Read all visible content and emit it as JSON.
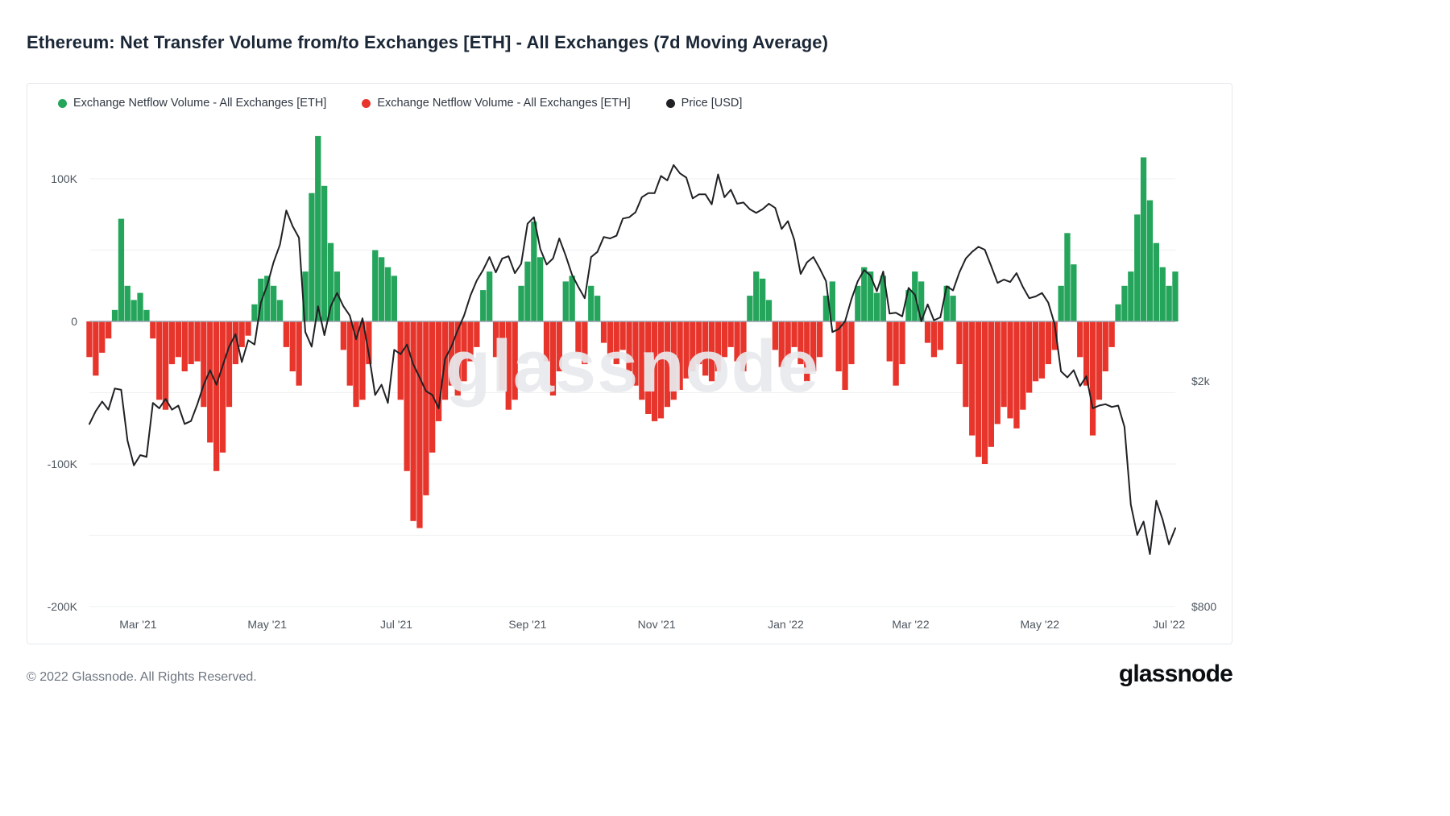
{
  "page": {
    "title": "Ethereum: Net Transfer Volume from/to Exchanges [ETH] - All Exchanges (7d Moving Average)",
    "footer_copyright": "© 2022 Glassnode. All Rights Reserved.",
    "brand_logo": "glassnode",
    "watermark": "glassnode"
  },
  "colors": {
    "positive_green": "#25a55b",
    "negative_red": "#e7352c",
    "price_black": "#202124",
    "zero_line": "#97a0ab",
    "gridline": "#eef0f2"
  },
  "legend": [
    {
      "label": "Exchange Netflow Volume - All Exchanges [ETH]",
      "color": "#25a55b"
    },
    {
      "label": "Exchange Netflow Volume - All Exchanges [ETH]",
      "color": "#e7352c"
    },
    {
      "label": "Price [USD]",
      "color": "#202124"
    }
  ],
  "chart_data": {
    "type": "bar",
    "title": "Ethereum: Net Transfer Volume from/to Exchanges [ETH] - All Exchanges (7d Moving Average)",
    "start_date": "2021-02-06",
    "step_days": 3,
    "series": [
      {
        "name": "Exchange Netflow Volume - All Exchanges [ETH]",
        "type": "bar",
        "axis": "left",
        "unit": "K ETH",
        "positive_color": "#25a55b",
        "negative_color": "#e7352c",
        "values": [
          -25,
          -38,
          -22,
          -12,
          8,
          72,
          25,
          15,
          20,
          8,
          -12,
          -55,
          -62,
          -30,
          -25,
          -35,
          -30,
          -28,
          -60,
          -85,
          -105,
          -92,
          -60,
          -30,
          -18,
          -10,
          12,
          30,
          32,
          25,
          15,
          -18,
          -35,
          -45,
          35,
          90,
          130,
          95,
          55,
          35,
          -20,
          -45,
          -60,
          -55,
          -30,
          50,
          45,
          38,
          32,
          -55,
          -105,
          -140,
          -145,
          -122,
          -92,
          -70,
          -55,
          -45,
          -52,
          -42,
          -28,
          -18,
          22,
          35,
          -25,
          -48,
          -62,
          -55,
          25,
          42,
          70,
          45,
          -28,
          -52,
          -35,
          28,
          32,
          -22,
          -30,
          25,
          18,
          -15,
          -25,
          -30,
          -20,
          -35,
          -45,
          -55,
          -65,
          -70,
          -68,
          -60,
          -55,
          -48,
          -40,
          -35,
          -30,
          -38,
          -42,
          -35,
          -25,
          -18,
          -28,
          -35,
          18,
          35,
          30,
          15,
          -20,
          -32,
          -25,
          -18,
          -30,
          -42,
          -35,
          -25,
          18,
          28,
          -35,
          -48,
          -30,
          25,
          38,
          35,
          20,
          32,
          -28,
          -45,
          -30,
          22,
          35,
          28,
          -15,
          -25,
          -20,
          25,
          18,
          -30,
          -60,
          -80,
          -95,
          -100,
          -88,
          -72,
          -60,
          -68,
          -75,
          -62,
          -50,
          -42,
          -40,
          -30,
          -20,
          25,
          62,
          40,
          -25,
          -45,
          -80,
          -55,
          -35,
          -18,
          12,
          25,
          35,
          75,
          115,
          85,
          55,
          38,
          25,
          35
        ]
      },
      {
        "name": "Price [USD]",
        "type": "line",
        "axis": "right",
        "unit": "USD",
        "color": "#202124",
        "values": [
          1680,
          1770,
          1840,
          1780,
          1940,
          1930,
          1570,
          1420,
          1480,
          1470,
          1830,
          1790,
          1860,
          1780,
          1810,
          1680,
          1700,
          1820,
          1970,
          2090,
          1970,
          2130,
          2300,
          2420,
          2160,
          2360,
          2320,
          2750,
          2950,
          3240,
          3480,
          4000,
          3750,
          3580,
          2440,
          2300,
          2710,
          2410,
          2710,
          2860,
          2710,
          2610,
          2370,
          2580,
          2230,
          1890,
          1970,
          1830,
          2270,
          2230,
          2320,
          2140,
          2030,
          1920,
          1890,
          1790,
          2190,
          2300,
          2460,
          2610,
          2830,
          3010,
          3140,
          3310,
          3110,
          3290,
          3320,
          3100,
          3220,
          3790,
          3890,
          3420,
          3210,
          3290,
          3570,
          3330,
          3080,
          2930,
          2800,
          3310,
          3380,
          3590,
          3570,
          3610,
          3870,
          3890,
          3970,
          4220,
          4290,
          4290,
          4600,
          4520,
          4810,
          4650,
          4570,
          4200,
          4270,
          4270,
          4100,
          4630,
          4220,
          4350,
          4110,
          4130,
          4020,
          3960,
          4020,
          4110,
          4040,
          3710,
          3830,
          3550,
          3090,
          3240,
          3310,
          3160,
          3000,
          2440,
          2470,
          2550,
          2790,
          3000,
          3140,
          3070,
          2880,
          3120,
          2630,
          2640,
          2600,
          2920,
          2840,
          2550,
          2730,
          2560,
          2590,
          2940,
          2890,
          3110,
          3290,
          3380,
          3450,
          3410,
          3190,
          2980,
          3020,
          2990,
          3100,
          2930,
          2800,
          2820,
          2860,
          2750,
          2520,
          2080,
          2030,
          2090,
          1960,
          2040,
          1790,
          1810,
          1820,
          1800,
          1810,
          1660,
          1210,
          1070,
          1130,
          990,
          1230,
          1140,
          1030,
          1100
        ]
      }
    ],
    "left_axis": {
      "unit": "K ETH",
      "range": [
        -210,
        143
      ],
      "gridlines": [
        100,
        50,
        0,
        -50,
        -100,
        -150,
        -200
      ],
      "ticks": [
        {
          "label": "100K",
          "value": 100
        },
        {
          "label": "0",
          "value": 0
        },
        {
          "label": "-100K",
          "value": -100
        },
        {
          "label": "-200K",
          "value": -200
        }
      ]
    },
    "right_axis": {
      "scale": "log",
      "unit": "USD",
      "ticks": [
        {
          "label": "$2k",
          "value": 2000
        },
        {
          "label": "$800",
          "value": 800
        }
      ]
    },
    "x_axis": {
      "ticks": [
        {
          "label": "Mar '21",
          "date": "2021-03-01"
        },
        {
          "label": "May '21",
          "date": "2021-05-01"
        },
        {
          "label": "Jul '21",
          "date": "2021-07-01"
        },
        {
          "label": "Sep '21",
          "date": "2021-09-01"
        },
        {
          "label": "Nov '21",
          "date": "2021-11-01"
        },
        {
          "label": "Jan '22",
          "date": "2022-01-01"
        },
        {
          "label": "Mar '22",
          "date": "2022-03-01"
        },
        {
          "label": "May '22",
          "date": "2022-05-01"
        },
        {
          "label": "Jul '22",
          "date": "2022-07-01"
        }
      ]
    },
    "legend_position": "top-left",
    "grid": true
  }
}
